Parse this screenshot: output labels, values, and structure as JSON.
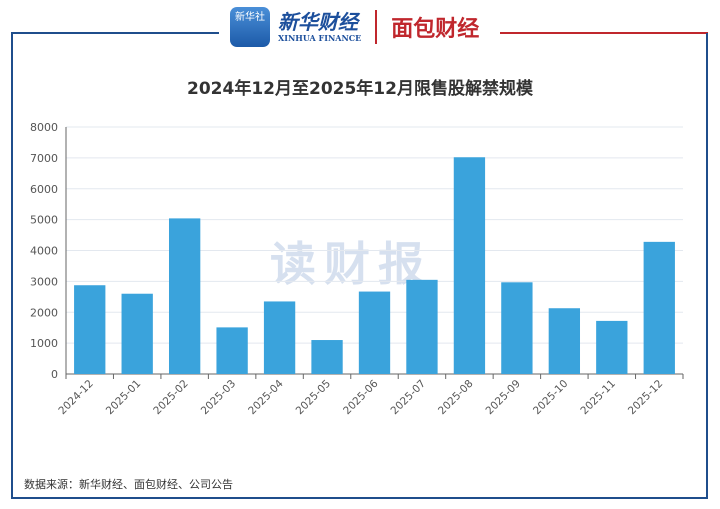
{
  "header": {
    "logo_xinhua_badge": "新华社",
    "logo_xinhua_cn": "新华财经",
    "logo_xinhua_en": "XINHUA FINANCE",
    "logo_mianbao": "面包财经"
  },
  "watermark": "读财报",
  "footer": {
    "source": "数据来源：新华财经、面包财经、公司公告"
  },
  "colors": {
    "bar": "#3aa3dc",
    "frame_left": "#1f4e8c",
    "frame_right": "#c0272d"
  },
  "chart_data": {
    "type": "bar",
    "title": "2024年12月至2025年12月限售股解禁规模",
    "xlabel": "",
    "ylabel": "",
    "categories": [
      "2024-12",
      "2025-01",
      "2025-02",
      "2025-03",
      "2025-04",
      "2025-05",
      "2025-06",
      "2025-07",
      "2025-08",
      "2025-09",
      "2025-10",
      "2025-11",
      "2025-12"
    ],
    "values": [
      2875,
      2600,
      5040,
      1510,
      2350,
      1100,
      2670,
      3050,
      7020,
      2970,
      2130,
      1720,
      4280
    ],
    "ylim": [
      0,
      8000
    ],
    "yticks": [
      "0",
      "1000",
      "2000",
      "3000",
      "4000",
      "5000",
      "6000",
      "7000",
      "8000"
    ],
    "grid": true,
    "legend": "none"
  }
}
